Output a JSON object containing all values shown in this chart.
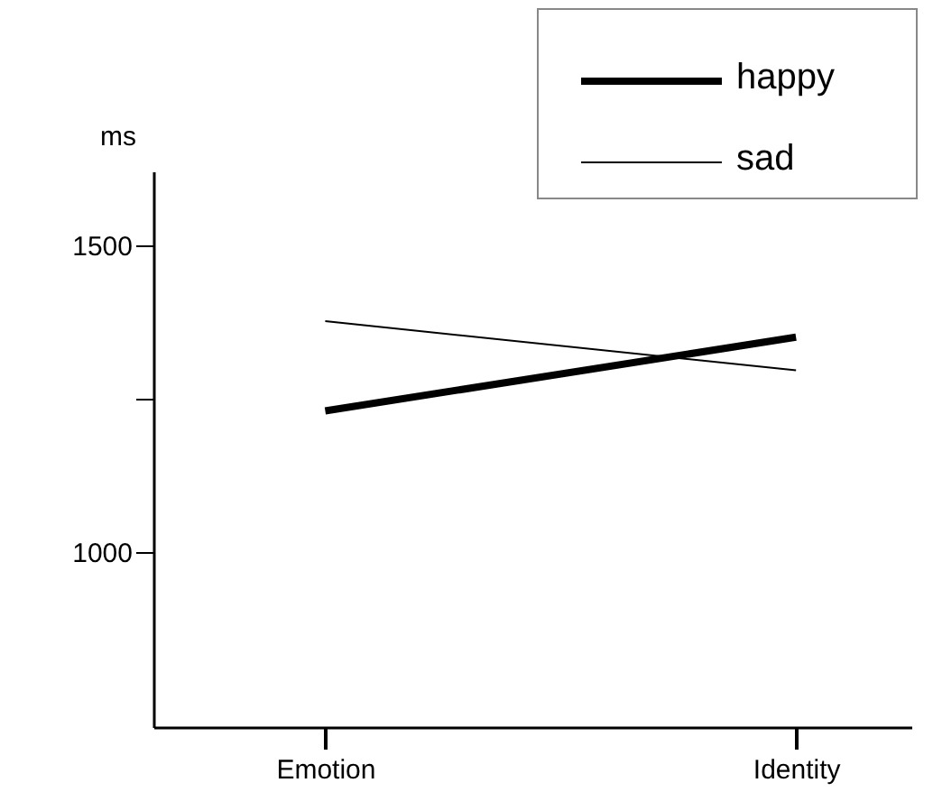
{
  "chart_data": {
    "type": "line",
    "ylabel": "ms",
    "categories": [
      "Emotion",
      "Identity"
    ],
    "series": [
      {
        "name": "happy",
        "color": "#000000",
        "values": [
          1230,
          1350
        ]
      },
      {
        "name": "sad",
        "color": "#000000",
        "values": [
          1376,
          1296
        ]
      }
    ],
    "ylim": [
      715,
      1620
    ],
    "yticks": [
      1000,
      {
        "value": 1250,
        "label": null
      },
      1500
    ],
    "legend": "top right",
    "grid": false
  }
}
